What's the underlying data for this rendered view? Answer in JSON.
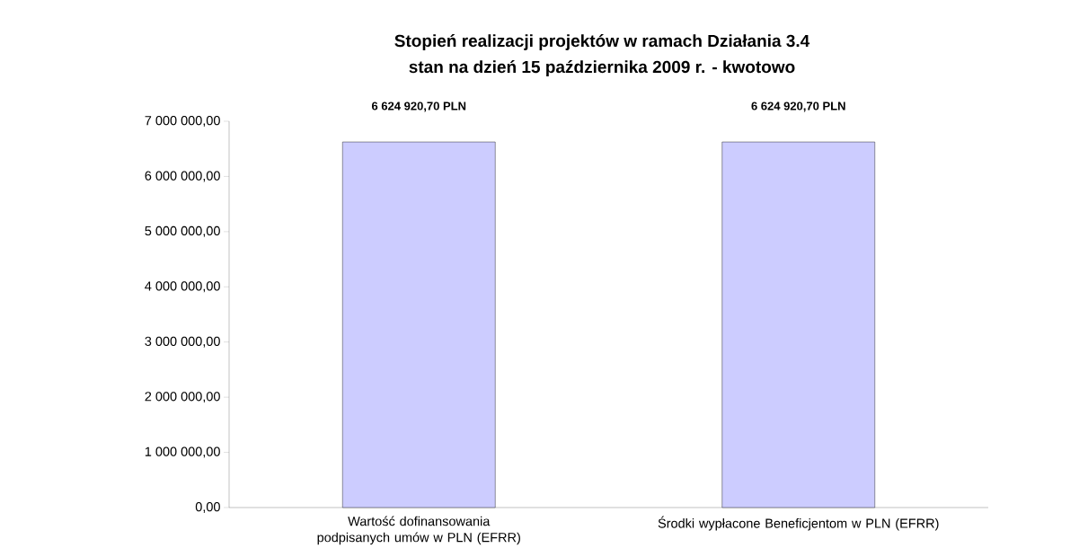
{
  "chart_data": {
    "type": "bar",
    "title": "Stopień realizacji projektów w ramach Działania 3.4",
    "subtitle": "stan na dzień 15 października 2009 r. - kwotowo",
    "categories": [
      "Wartość dofinansowania podpisanych umów w PLN (EFRR)",
      "Środki wypłacone Beneficjentom w PLN (EFRR)"
    ],
    "values": [
      6624920.7,
      6624920.7
    ],
    "value_labels": [
      "6 624 920,70 PLN",
      "6 624 920,70 PLN"
    ],
    "color": "#ccccff",
    "ylim": [
      0,
      7000000
    ],
    "yticks": [
      {
        "value": 0,
        "label": "0,00"
      },
      {
        "value": 1000000,
        "label": "1 000 000,00"
      },
      {
        "value": 2000000,
        "label": "2 000 000,00"
      },
      {
        "value": 3000000,
        "label": "3 000 000,00"
      },
      {
        "value": 4000000,
        "label": "4 000 000,00"
      },
      {
        "value": 5000000,
        "label": "5 000 000,00"
      },
      {
        "value": 6000000,
        "label": "6 000 000,00"
      },
      {
        "value": 7000000,
        "label": "7 000 000,00"
      }
    ],
    "grid": false
  }
}
